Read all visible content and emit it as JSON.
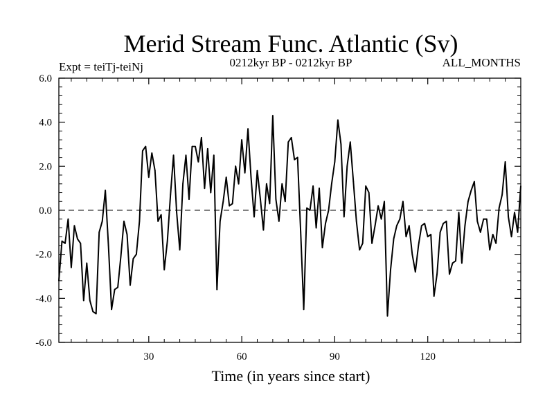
{
  "chart_data": {
    "type": "line",
    "title": "Merid Stream Func. Atlantic (Sv)",
    "subtitle_left": "Expt = teiTj-teiNj",
    "subtitle_center": "0212kyr BP - 0212kyr BP",
    "subtitle_right": "ALL_MONTHS",
    "xlabel": "Time (in years since start)",
    "ylabel": "",
    "xlim": [
      1,
      150
    ],
    "ylim": [
      -6,
      6
    ],
    "xticks": [
      30,
      60,
      90,
      120
    ],
    "xtick_labels": [
      "30",
      "60",
      "90",
      "120"
    ],
    "yticks": [
      -6,
      -4,
      -2,
      0,
      2,
      4,
      6
    ],
    "ytick_labels": [
      "-6.0",
      "-4.0",
      "-2.0",
      "0.0",
      "2.0",
      "4.0",
      "6.0"
    ],
    "reference_line": 0,
    "series": [
      {
        "name": "Merid Stream Func. Atlantic",
        "x": [
          1,
          2,
          3,
          4,
          5,
          6,
          7,
          8,
          9,
          10,
          11,
          12,
          13,
          14,
          15,
          16,
          17,
          18,
          19,
          20,
          21,
          22,
          23,
          24,
          25,
          26,
          27,
          28,
          29,
          30,
          31,
          32,
          33,
          34,
          35,
          36,
          37,
          38,
          39,
          40,
          41,
          42,
          43,
          44,
          45,
          46,
          47,
          48,
          49,
          50,
          51,
          52,
          53,
          54,
          55,
          56,
          57,
          58,
          59,
          60,
          61,
          62,
          63,
          64,
          65,
          66,
          67,
          68,
          69,
          70,
          71,
          72,
          73,
          74,
          75,
          76,
          77,
          78,
          79,
          80,
          81,
          82,
          83,
          84,
          85,
          86,
          87,
          88,
          89,
          90,
          91,
          92,
          93,
          94,
          95,
          96,
          97,
          98,
          99,
          100,
          101,
          102,
          103,
          104,
          105,
          106,
          107,
          108,
          109,
          110,
          111,
          112,
          113,
          114,
          115,
          116,
          117,
          118,
          119,
          120,
          121,
          122,
          123,
          124,
          125,
          126,
          127,
          128,
          129,
          130,
          131,
          132,
          133,
          134,
          135,
          136,
          137,
          138,
          139,
          140,
          141,
          142,
          143,
          144,
          145,
          146,
          147,
          148,
          149,
          150
        ],
        "values": [
          -3.2,
          -1.4,
          -1.5,
          -0.4,
          -2.6,
          -0.7,
          -1.3,
          -1.5,
          -4.1,
          -2.4,
          -4.1,
          -4.6,
          -4.7,
          -1.0,
          -0.5,
          0.9,
          -1.6,
          -4.5,
          -3.6,
          -3.5,
          -2.1,
          -0.5,
          -1.1,
          -3.4,
          -2.2,
          -2.0,
          -0.5,
          2.7,
          2.9,
          1.5,
          2.6,
          1.8,
          -0.5,
          -0.2,
          -2.7,
          -1.4,
          0.7,
          2.5,
          -0.1,
          -1.8,
          1.2,
          2.5,
          0.5,
          2.9,
          2.9,
          2.2,
          3.3,
          1.0,
          2.8,
          0.8,
          2.5,
          -3.6,
          -0.5,
          0.4,
          1.5,
          0.2,
          0.3,
          2.0,
          1.2,
          3.2,
          1.7,
          3.7,
          1.5,
          -0.3,
          1.8,
          0.5,
          -0.9,
          1.2,
          0.3,
          4.3,
          0.5,
          -0.5,
          1.2,
          0.4,
          3.1,
          3.3,
          2.3,
          2.4,
          -1.0,
          -4.5,
          0.1,
          0.0,
          1.1,
          -0.8,
          1.0,
          -1.7,
          -0.6,
          0.0,
          1.2,
          2.2,
          4.1,
          3.0,
          -0.3,
          2.0,
          3.1,
          1.3,
          -0.5,
          -1.8,
          -1.5,
          1.1,
          0.8,
          -1.5,
          -0.7,
          0.2,
          -0.4,
          0.4,
          -4.8,
          -2.7,
          -1.3,
          -0.7,
          -0.4,
          0.4,
          -1.2,
          -0.7,
          -2.0,
          -2.8,
          -1.6,
          -0.7,
          -0.6,
          -1.2,
          -1.1,
          -3.9,
          -2.9,
          -1.0,
          -0.6,
          -0.5,
          -2.9,
          -2.4,
          -2.3,
          -0.1,
          -2.4,
          -0.7,
          0.4,
          0.9,
          1.3,
          -0.5,
          -1.0,
          -0.4,
          -0.4,
          -1.8,
          -1.1,
          -1.5,
          0.1,
          0.7,
          2.2,
          -0.3,
          -1.2,
          -0.1,
          -1.0,
          1.1
        ]
      }
    ]
  }
}
